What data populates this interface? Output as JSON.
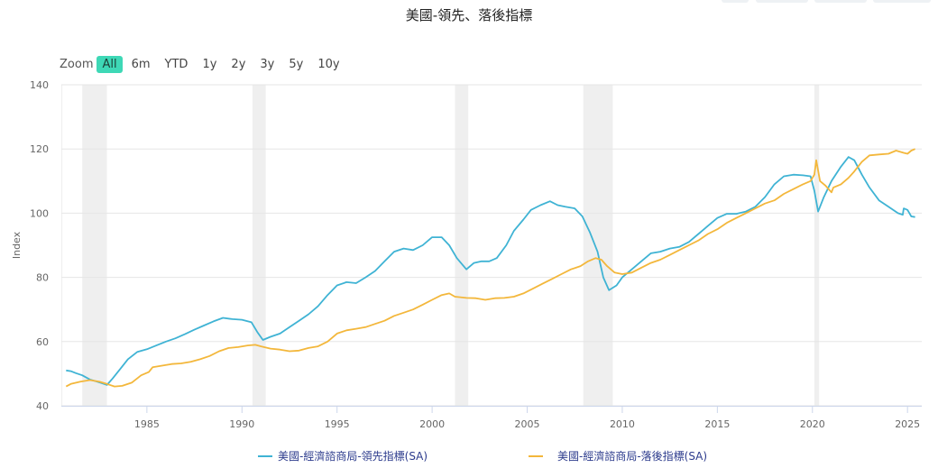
{
  "title": "美國-領先、落後指標",
  "zoom": {
    "label": "Zoom",
    "buttons": [
      "All",
      "6m",
      "YTD",
      "1y",
      "2y",
      "3y",
      "5y",
      "10y"
    ],
    "active": "All"
  },
  "chart_data": {
    "type": "line",
    "title": "美國-領先、落後指標",
    "ylabel": "Index",
    "xlabel": "",
    "ylim": [
      40,
      140
    ],
    "xlim": [
      1980.5,
      2025.75
    ],
    "yticks": [
      40,
      60,
      80,
      100,
      120,
      140
    ],
    "xticks": [
      1985,
      1990,
      1995,
      2000,
      2005,
      2010,
      2015,
      2020,
      2025
    ],
    "grid": true,
    "legend_position": "bottom",
    "recessions": [
      [
        1980.0,
        1980.55
      ],
      [
        1981.6,
        1982.9
      ],
      [
        1990.55,
        1991.25
      ],
      [
        2001.2,
        2001.9
      ],
      [
        2007.95,
        2009.5
      ],
      [
        2020.1,
        2020.35
      ]
    ],
    "series": [
      {
        "name": "美國-經濟諮商局-領先指標(SA)",
        "color": "#3fb3d4",
        "points": [
          [
            1980.75,
            51
          ],
          [
            1981.0,
            50.8
          ],
          [
            1981.25,
            50.2
          ],
          [
            1981.6,
            49.5
          ],
          [
            1982.0,
            48.2
          ],
          [
            1982.5,
            47.3
          ],
          [
            1982.9,
            46.5
          ],
          [
            1983.2,
            48.5
          ],
          [
            1983.6,
            51.5
          ],
          [
            1984.0,
            54.5
          ],
          [
            1984.5,
            56.8
          ],
          [
            1985.0,
            57.6
          ],
          [
            1985.5,
            58.8
          ],
          [
            1986.0,
            60
          ],
          [
            1986.5,
            61
          ],
          [
            1987.0,
            62.3
          ],
          [
            1987.5,
            63.7
          ],
          [
            1988.0,
            65
          ],
          [
            1988.5,
            66.3
          ],
          [
            1989.0,
            67.4
          ],
          [
            1989.5,
            67
          ],
          [
            1990.0,
            66.8
          ],
          [
            1990.5,
            66
          ],
          [
            1990.8,
            63
          ],
          [
            1991.1,
            60.5
          ],
          [
            1991.5,
            61.5
          ],
          [
            1992.0,
            62.5
          ],
          [
            1992.5,
            64.5
          ],
          [
            1993.0,
            66.5
          ],
          [
            1993.5,
            68.5
          ],
          [
            1994.0,
            71
          ],
          [
            1994.5,
            74.5
          ],
          [
            1995.0,
            77.5
          ],
          [
            1995.5,
            78.5
          ],
          [
            1996.0,
            78.2
          ],
          [
            1996.5,
            80
          ],
          [
            1997.0,
            82
          ],
          [
            1997.5,
            85
          ],
          [
            1998.0,
            88
          ],
          [
            1998.5,
            89
          ],
          [
            1999.0,
            88.5
          ],
          [
            1999.5,
            90
          ],
          [
            2000.0,
            92.5
          ],
          [
            2000.5,
            92.5
          ],
          [
            2000.9,
            90
          ],
          [
            2001.3,
            86
          ],
          [
            2001.8,
            82.5
          ],
          [
            2002.2,
            84.5
          ],
          [
            2002.6,
            85
          ],
          [
            2003.0,
            85
          ],
          [
            2003.4,
            86
          ],
          [
            2003.9,
            90
          ],
          [
            2004.3,
            94.5
          ],
          [
            2004.8,
            98
          ],
          [
            2005.2,
            101
          ],
          [
            2005.7,
            102.5
          ],
          [
            2006.2,
            103.7
          ],
          [
            2006.6,
            102.5
          ],
          [
            2007.0,
            102
          ],
          [
            2007.5,
            101.5
          ],
          [
            2007.9,
            99
          ],
          [
            2008.3,
            94
          ],
          [
            2008.7,
            88
          ],
          [
            2009.0,
            80
          ],
          [
            2009.3,
            76
          ],
          [
            2009.7,
            77.5
          ],
          [
            2010.0,
            80
          ],
          [
            2010.5,
            82.5
          ],
          [
            2011.0,
            85
          ],
          [
            2011.5,
            87.5
          ],
          [
            2012.0,
            88
          ],
          [
            2012.5,
            89
          ],
          [
            2013.0,
            89.5
          ],
          [
            2013.5,
            91
          ],
          [
            2014.0,
            93.5
          ],
          [
            2014.5,
            96
          ],
          [
            2015.0,
            98.5
          ],
          [
            2015.5,
            99.8
          ],
          [
            2016.0,
            99.8
          ],
          [
            2016.5,
            100.5
          ],
          [
            2017.0,
            102
          ],
          [
            2017.5,
            105
          ],
          [
            2018.0,
            109
          ],
          [
            2018.5,
            111.5
          ],
          [
            2019.0,
            112
          ],
          [
            2019.5,
            111.8
          ],
          [
            2019.9,
            111.5
          ],
          [
            2020.1,
            107
          ],
          [
            2020.3,
            100.5
          ],
          [
            2020.6,
            105
          ],
          [
            2021.0,
            110
          ],
          [
            2021.5,
            114.5
          ],
          [
            2021.9,
            117.5
          ],
          [
            2022.2,
            116.5
          ],
          [
            2022.6,
            112
          ],
          [
            2023.0,
            108
          ],
          [
            2023.5,
            104
          ],
          [
            2024.0,
            102
          ],
          [
            2024.5,
            100
          ],
          [
            2024.75,
            99.5
          ],
          [
            2024.8,
            101.5
          ],
          [
            2025.0,
            101
          ],
          [
            2025.2,
            99
          ],
          [
            2025.4,
            98.8
          ]
        ]
      },
      {
        "name": "美國-經濟諮商局-落後指標(SA)",
        "color": "#f3b73b",
        "points": [
          [
            1980.75,
            46
          ],
          [
            1981.0,
            46.8
          ],
          [
            1981.5,
            47.5
          ],
          [
            1982.0,
            48
          ],
          [
            1982.5,
            47.5
          ],
          [
            1982.9,
            46.8
          ],
          [
            1983.3,
            46
          ],
          [
            1983.7,
            46.2
          ],
          [
            1984.2,
            47.2
          ],
          [
            1984.7,
            49.5
          ],
          [
            1985.1,
            50.5
          ],
          [
            1985.3,
            52
          ],
          [
            1985.8,
            52.5
          ],
          [
            1986.3,
            53
          ],
          [
            1986.8,
            53.2
          ],
          [
            1987.3,
            53.7
          ],
          [
            1987.8,
            54.5
          ],
          [
            1988.3,
            55.5
          ],
          [
            1988.8,
            57
          ],
          [
            1989.3,
            58
          ],
          [
            1989.8,
            58.3
          ],
          [
            1990.3,
            58.8
          ],
          [
            1990.7,
            59
          ],
          [
            1991.0,
            58.5
          ],
          [
            1991.5,
            57.8
          ],
          [
            1992.0,
            57.5
          ],
          [
            1992.5,
            57
          ],
          [
            1993.0,
            57.2
          ],
          [
            1993.5,
            58
          ],
          [
            1994.0,
            58.5
          ],
          [
            1994.5,
            60
          ],
          [
            1995.0,
            62.5
          ],
          [
            1995.5,
            63.5
          ],
          [
            1996.0,
            64
          ],
          [
            1996.5,
            64.5
          ],
          [
            1997.0,
            65.5
          ],
          [
            1997.5,
            66.5
          ],
          [
            1998.0,
            68
          ],
          [
            1998.5,
            69
          ],
          [
            1999.0,
            70
          ],
          [
            1999.5,
            71.5
          ],
          [
            2000.0,
            73
          ],
          [
            2000.5,
            74.5
          ],
          [
            2000.9,
            75
          ],
          [
            2001.2,
            74
          ],
          [
            2001.8,
            73.6
          ],
          [
            2002.3,
            73.5
          ],
          [
            2002.8,
            73
          ],
          [
            2003.3,
            73.5
          ],
          [
            2003.8,
            73.6
          ],
          [
            2004.3,
            74
          ],
          [
            2004.8,
            75
          ],
          [
            2005.3,
            76.5
          ],
          [
            2005.8,
            78
          ],
          [
            2006.3,
            79.5
          ],
          [
            2006.8,
            81
          ],
          [
            2007.3,
            82.5
          ],
          [
            2007.8,
            83.5
          ],
          [
            2008.2,
            85
          ],
          [
            2008.6,
            86
          ],
          [
            2008.9,
            85.5
          ],
          [
            2009.2,
            83.5
          ],
          [
            2009.6,
            81.5
          ],
          [
            2010.0,
            81
          ],
          [
            2010.5,
            81.5
          ],
          [
            2011.0,
            83
          ],
          [
            2011.5,
            84.5
          ],
          [
            2012.0,
            85.5
          ],
          [
            2012.5,
            87
          ],
          [
            2013.0,
            88.5
          ],
          [
            2013.5,
            90
          ],
          [
            2014.0,
            91.5
          ],
          [
            2014.5,
            93.5
          ],
          [
            2015.0,
            95
          ],
          [
            2015.5,
            97
          ],
          [
            2016.0,
            98.5
          ],
          [
            2016.5,
            100
          ],
          [
            2017.0,
            101.5
          ],
          [
            2017.5,
            103
          ],
          [
            2018.0,
            104
          ],
          [
            2018.5,
            106
          ],
          [
            2019.0,
            107.5
          ],
          [
            2019.5,
            109
          ],
          [
            2019.9,
            110
          ],
          [
            2020.1,
            112
          ],
          [
            2020.2,
            116.5
          ],
          [
            2020.4,
            110
          ],
          [
            2020.7,
            108.5
          ],
          [
            2021.0,
            106.5
          ],
          [
            2021.1,
            108
          ],
          [
            2021.5,
            109
          ],
          [
            2021.9,
            111
          ],
          [
            2022.2,
            113
          ],
          [
            2022.6,
            116
          ],
          [
            2023.0,
            118
          ],
          [
            2023.5,
            118.3
          ],
          [
            2024.0,
            118.5
          ],
          [
            2024.4,
            119.5
          ],
          [
            2024.8,
            118.8
          ],
          [
            2025.0,
            118.5
          ],
          [
            2025.2,
            119.5
          ],
          [
            2025.4,
            120
          ]
        ]
      }
    ]
  }
}
